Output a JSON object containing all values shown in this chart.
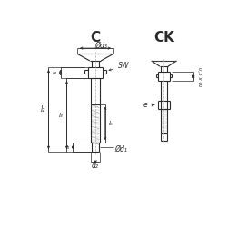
{
  "bg_color": "#ffffff",
  "line_color": "#2a2a2a",
  "dim_color": "#2a2a2a",
  "title_C": "C",
  "title_CK": "CK",
  "label_d3": "Ød₃",
  "label_d1": "Ød₁",
  "label_d2": "d₂",
  "label_l2": "l₂",
  "label_l4": "l₄",
  "label_l3": "l₃",
  "label_l1": "l₁",
  "label_l5": "l₅",
  "label_SW": "SW",
  "label_e": "e",
  "label_05d2": "0,5 x d₂",
  "figsize": [
    2.5,
    2.5
  ],
  "dpi": 100
}
